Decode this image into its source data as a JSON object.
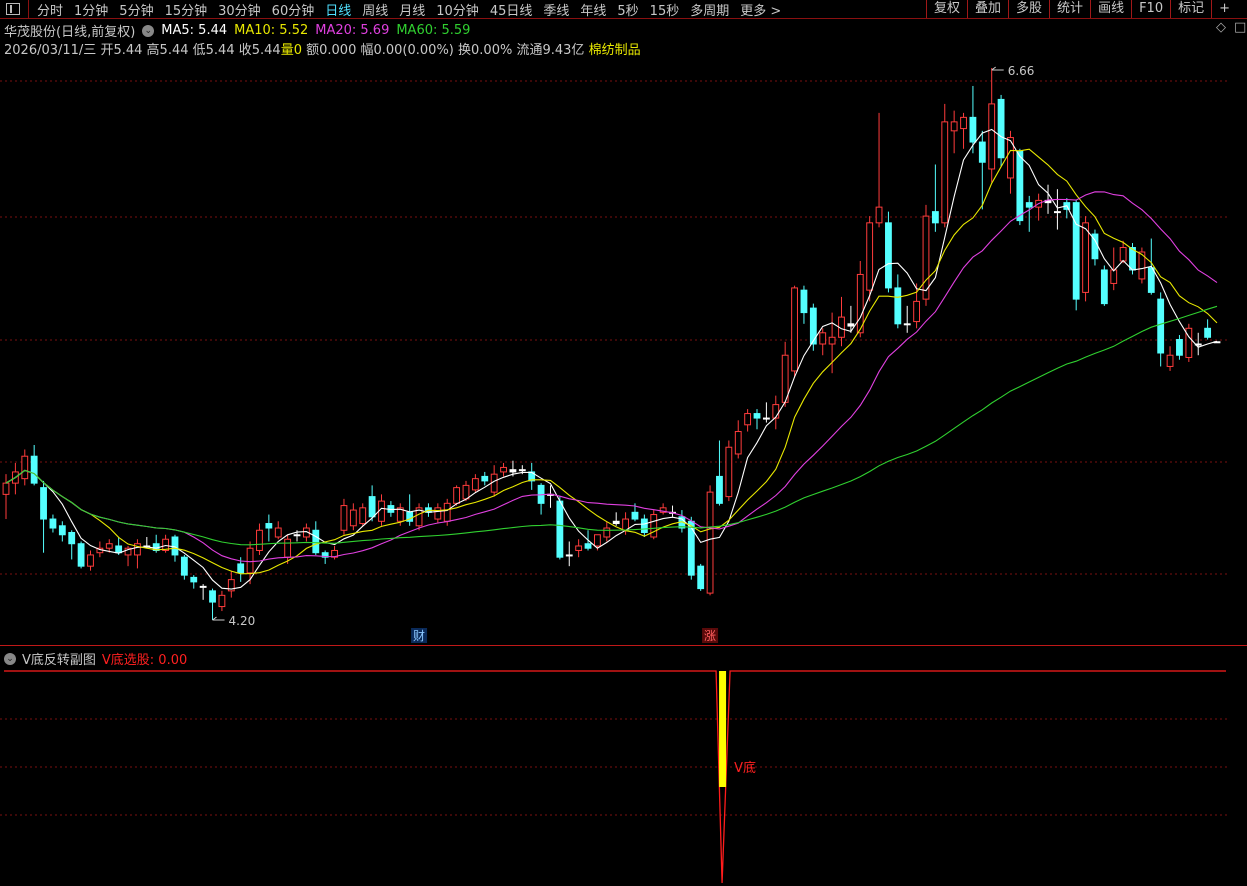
{
  "toolbar": {
    "periods": [
      "分时",
      "1分钟",
      "5分钟",
      "15分钟",
      "30分钟",
      "60分钟",
      "日线",
      "周线",
      "月线",
      "10分钟",
      "45日线",
      "季线",
      "年线",
      "5秒",
      "15秒",
      "多周期",
      "更多 >"
    ],
    "active_period": "日线",
    "buttons": [
      "复权",
      "叠加",
      "多股",
      "统计",
      "画线",
      "F10",
      "标记",
      "+"
    ]
  },
  "header": {
    "title": "华茂股份(日线,前复权)",
    "ma5": "MA5: 5.44",
    "ma10": "MA10: 5.52",
    "ma20": "MA20: 5.69",
    "ma60": "MA60: 5.59",
    "date": "2026/03/11/三",
    "open": "开5.44",
    "high": "高5.44",
    "low": "低5.44",
    "close": "收5.44",
    "vol_label": "量",
    "vol": "0",
    "amount": "额0.000",
    "change": "幅0.00(0.00%)",
    "turnover": "换0.00%",
    "float": "流通9.43亿",
    "sector": "棉纺制品"
  },
  "colors": {
    "up": "#ff3c3c",
    "down": "#54ffff",
    "ma5": "#ffffff",
    "ma10": "#e8e800",
    "ma20": "#e040e0",
    "ma60": "#30d030",
    "grid": "#7a1010",
    "accent": "#c01818"
  },
  "chart_data": {
    "type": "candlestick",
    "ohlc_order": [
      "open",
      "high",
      "low",
      "close"
    ],
    "ma_periods": [
      5,
      10,
      20,
      60
    ],
    "ylim": [
      4.08,
      6.72
    ],
    "high_label": "6.66",
    "low_label": "4.20",
    "candles": [
      [
        4.76,
        4.85,
        4.65,
        4.81
      ],
      [
        4.81,
        4.9,
        4.76,
        4.86
      ],
      [
        4.83,
        4.96,
        4.8,
        4.93
      ],
      [
        4.93,
        4.98,
        4.8,
        4.81
      ],
      [
        4.79,
        4.82,
        4.5,
        4.65
      ],
      [
        4.65,
        4.67,
        4.59,
        4.61
      ],
      [
        4.62,
        4.64,
        4.55,
        4.58
      ],
      [
        4.59,
        4.6,
        4.47,
        4.54
      ],
      [
        4.54,
        4.55,
        4.43,
        4.44
      ],
      [
        4.44,
        4.51,
        4.42,
        4.49
      ],
      [
        4.5,
        4.55,
        4.48,
        4.52
      ],
      [
        4.52,
        4.56,
        4.5,
        4.54
      ],
      [
        4.53,
        4.57,
        4.49,
        4.5
      ],
      [
        4.49,
        4.53,
        4.44,
        4.52
      ],
      [
        4.49,
        4.56,
        4.43,
        4.54
      ],
      [
        4.53,
        4.57,
        4.52,
        4.53
      ],
      [
        4.54,
        4.58,
        4.5,
        4.51
      ],
      [
        4.51,
        4.58,
        4.5,
        4.56
      ],
      [
        4.57,
        4.58,
        4.46,
        4.49
      ],
      [
        4.48,
        4.49,
        4.38,
        4.4
      ],
      [
        4.39,
        4.4,
        4.34,
        4.37
      ],
      [
        4.35,
        4.36,
        4.29,
        4.35
      ],
      [
        4.33,
        4.34,
        4.2,
        4.28
      ],
      [
        4.26,
        4.33,
        4.24,
        4.31
      ],
      [
        4.33,
        4.42,
        4.3,
        4.38
      ],
      [
        4.45,
        4.48,
        4.37,
        4.41
      ],
      [
        4.41,
        4.55,
        4.36,
        4.52
      ],
      [
        4.51,
        4.63,
        4.49,
        4.6
      ],
      [
        4.63,
        4.67,
        4.55,
        4.61
      ],
      [
        4.57,
        4.64,
        4.56,
        4.61
      ],
      [
        4.48,
        4.58,
        4.45,
        4.56
      ],
      [
        4.58,
        4.6,
        4.55,
        4.58
      ],
      [
        4.57,
        4.63,
        4.55,
        4.61
      ],
      [
        4.6,
        4.64,
        4.49,
        4.5
      ],
      [
        4.5,
        4.51,
        4.45,
        4.48
      ],
      [
        4.48,
        4.53,
        4.47,
        4.51
      ],
      [
        4.6,
        4.74,
        4.58,
        4.71
      ],
      [
        4.62,
        4.72,
        4.6,
        4.69
      ],
      [
        4.63,
        4.72,
        4.62,
        4.7
      ],
      [
        4.75,
        4.8,
        4.64,
        4.66
      ],
      [
        4.64,
        4.76,
        4.62,
        4.73
      ],
      [
        4.71,
        4.73,
        4.66,
        4.68
      ],
      [
        4.64,
        4.72,
        4.62,
        4.7
      ],
      [
        4.68,
        4.76,
        4.62,
        4.64
      ],
      [
        4.62,
        4.72,
        4.6,
        4.7
      ],
      [
        4.7,
        4.72,
        4.66,
        4.68
      ],
      [
        4.65,
        4.72,
        4.63,
        4.7
      ],
      [
        4.64,
        4.74,
        4.62,
        4.72
      ],
      [
        4.72,
        4.8,
        4.71,
        4.79
      ],
      [
        4.74,
        4.82,
        4.73,
        4.8
      ],
      [
        4.78,
        4.85,
        4.77,
        4.83
      ],
      [
        4.84,
        4.86,
        4.8,
        4.82
      ],
      [
        4.77,
        4.89,
        4.75,
        4.85
      ],
      [
        4.86,
        4.9,
        4.84,
        4.88
      ],
      [
        4.86,
        4.91,
        4.84,
        4.87
      ],
      [
        4.87,
        4.89,
        4.85,
        4.87
      ],
      [
        4.86,
        4.9,
        4.78,
        4.82
      ],
      [
        4.8,
        4.81,
        4.67,
        4.72
      ],
      [
        4.76,
        4.8,
        4.7,
        4.76
      ],
      [
        4.73,
        4.75,
        4.47,
        4.48
      ],
      [
        4.49,
        4.55,
        4.44,
        4.49
      ],
      [
        4.51,
        4.56,
        4.48,
        4.53
      ],
      [
        4.54,
        4.6,
        4.51,
        4.52
      ],
      [
        4.53,
        4.58,
        4.51,
        4.58
      ],
      [
        4.57,
        4.64,
        4.55,
        4.61
      ],
      [
        4.63,
        4.68,
        4.62,
        4.64
      ],
      [
        4.6,
        4.68,
        4.58,
        4.65
      ],
      [
        4.68,
        4.72,
        4.64,
        4.65
      ],
      [
        4.65,
        4.67,
        4.57,
        4.59
      ],
      [
        4.57,
        4.69,
        4.56,
        4.67
      ],
      [
        4.68,
        4.72,
        4.67,
        4.7
      ],
      [
        4.68,
        4.71,
        4.66,
        4.68
      ],
      [
        4.66,
        4.69,
        4.59,
        4.61
      ],
      [
        4.64,
        4.66,
        4.38,
        4.4
      ],
      [
        4.44,
        4.45,
        4.33,
        4.34
      ],
      [
        4.32,
        4.8,
        4.31,
        4.77
      ],
      [
        4.84,
        5.0,
        4.71,
        4.72
      ],
      [
        4.75,
        5.0,
        4.73,
        4.97
      ],
      [
        4.94,
        5.09,
        4.92,
        5.04
      ],
      [
        5.07,
        5.14,
        5.04,
        5.12
      ],
      [
        5.12,
        5.14,
        5.05,
        5.1
      ],
      [
        5.1,
        5.17,
        5.08,
        5.1
      ],
      [
        5.1,
        5.2,
        5.05,
        5.16
      ],
      [
        5.17,
        5.44,
        5.15,
        5.38
      ],
      [
        5.31,
        5.69,
        5.28,
        5.68
      ],
      [
        5.67,
        5.69,
        5.52,
        5.57
      ],
      [
        5.59,
        5.61,
        5.4,
        5.43
      ],
      [
        5.43,
        5.5,
        5.38,
        5.48
      ],
      [
        5.43,
        5.57,
        5.3,
        5.46
      ],
      [
        5.46,
        5.64,
        5.42,
        5.55
      ],
      [
        5.52,
        5.6,
        5.48,
        5.51
      ],
      [
        5.48,
        5.8,
        5.46,
        5.74
      ],
      [
        5.67,
        6.0,
        5.62,
        5.97
      ],
      [
        5.97,
        6.46,
        5.95,
        6.04
      ],
      [
        5.97,
        6.02,
        5.66,
        5.68
      ],
      [
        5.68,
        5.74,
        5.5,
        5.52
      ],
      [
        5.52,
        5.6,
        5.48,
        5.52
      ],
      [
        5.53,
        5.7,
        5.5,
        5.62
      ],
      [
        5.63,
        6.05,
        5.6,
        6.0
      ],
      [
        6.02,
        6.23,
        5.93,
        5.97
      ],
      [
        5.97,
        6.5,
        5.95,
        6.42
      ],
      [
        6.38,
        6.47,
        6.28,
        6.42
      ],
      [
        6.39,
        6.46,
        6.3,
        6.44
      ],
      [
        6.44,
        6.58,
        6.28,
        6.33
      ],
      [
        6.33,
        6.38,
        6.03,
        6.24
      ],
      [
        6.21,
        6.66,
        6.15,
        6.5
      ],
      [
        6.52,
        6.54,
        6.22,
        6.26
      ],
      [
        6.17,
        6.38,
        6.1,
        6.35
      ],
      [
        6.29,
        6.3,
        5.96,
        5.98
      ],
      [
        6.06,
        6.09,
        5.93,
        6.04
      ],
      [
        6.04,
        6.1,
        5.98,
        6.07
      ],
      [
        6.06,
        6.14,
        6.01,
        6.07
      ],
      [
        6.02,
        6.12,
        5.94,
        6.02
      ],
      [
        6.06,
        6.08,
        5.99,
        6.03
      ],
      [
        6.06,
        6.07,
        5.58,
        5.63
      ],
      [
        5.66,
        6.0,
        5.62,
        5.97
      ],
      [
        5.92,
        5.94,
        5.78,
        5.81
      ],
      [
        5.76,
        5.78,
        5.6,
        5.61
      ],
      [
        5.7,
        5.86,
        5.67,
        5.76
      ],
      [
        5.8,
        5.89,
        5.79,
        5.86
      ],
      [
        5.86,
        5.88,
        5.74,
        5.76
      ],
      [
        5.72,
        5.86,
        5.7,
        5.84
      ],
      [
        5.77,
        5.9,
        5.65,
        5.66
      ],
      [
        5.63,
        5.66,
        5.33,
        5.39
      ],
      [
        5.33,
        5.42,
        5.31,
        5.38
      ],
      [
        5.45,
        5.47,
        5.36,
        5.38
      ],
      [
        5.37,
        5.52,
        5.35,
        5.5
      ],
      [
        5.43,
        5.48,
        5.38,
        5.43
      ],
      [
        5.5,
        5.54,
        5.45,
        5.46
      ],
      [
        5.44,
        5.44,
        5.44,
        5.44
      ]
    ],
    "markers": [
      {
        "index": 44,
        "text": "财",
        "color": "#4fa8ff"
      },
      {
        "index": 75,
        "text": "涨",
        "color": "#ff3c3c"
      }
    ]
  },
  "sub_panel": {
    "title": "V底反转副图",
    "value_label": "V底选股: 0.00",
    "signal_label": "V底",
    "signal_index": 75
  }
}
